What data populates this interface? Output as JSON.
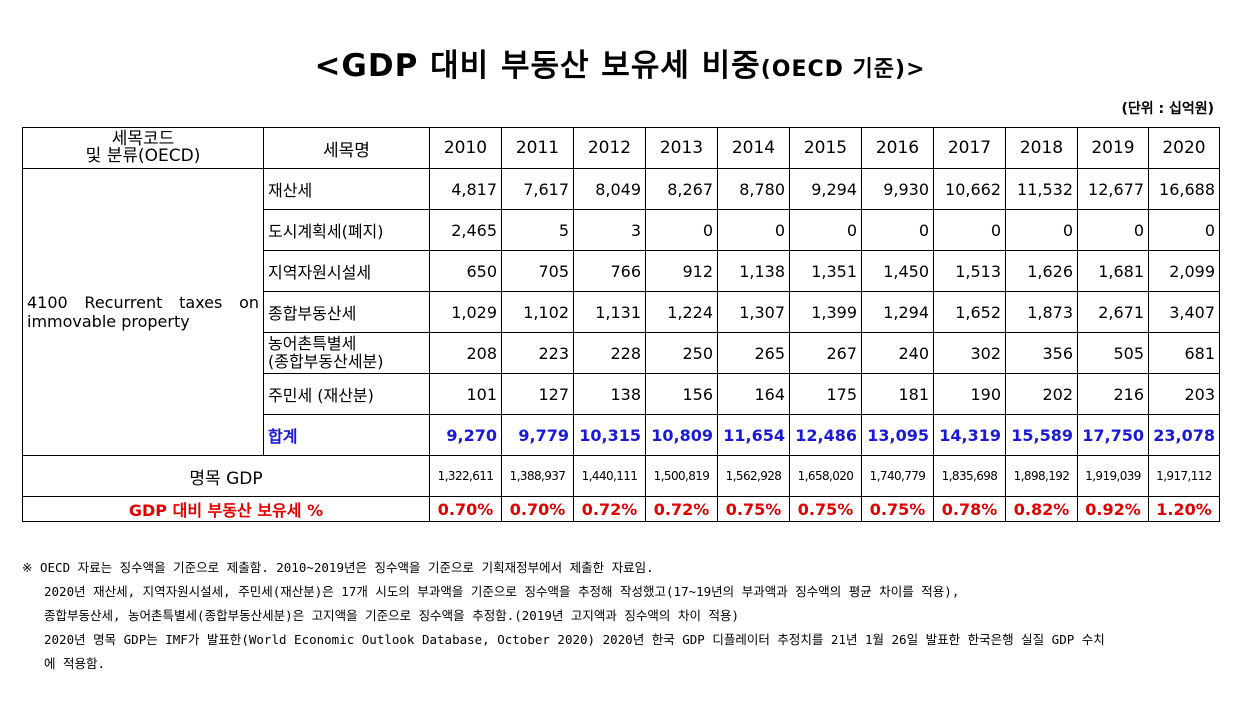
{
  "title_main": "<GDP 대비 부동산 보유세 비중",
  "title_sub": "(OECD 기준)>",
  "unit": "(단위 : 십억원)",
  "header": {
    "code_line1": "세목코드",
    "code_line2": "및 분류(OECD)",
    "name": "세목명",
    "years": [
      "2010",
      "2011",
      "2012",
      "2013",
      "2014",
      "2015",
      "2016",
      "2017",
      "2018",
      "2019",
      "2020"
    ]
  },
  "category": "4100 Recurrent taxes on immovable property",
  "rows": [
    {
      "name": "재산세",
      "values": [
        "4,817",
        "7,617",
        "8,049",
        "8,267",
        "8,780",
        "9,294",
        "9,930",
        "10,662",
        "11,532",
        "12,677",
        "16,688"
      ]
    },
    {
      "name": "도시계획세(폐지)",
      "values": [
        "2,465",
        "5",
        "3",
        "0",
        "0",
        "0",
        "0",
        "0",
        "0",
        "0",
        "0"
      ]
    },
    {
      "name": "지역자원시설세",
      "values": [
        "650",
        "705",
        "766",
        "912",
        "1,138",
        "1,351",
        "1,450",
        "1,513",
        "1,626",
        "1,681",
        "2,099"
      ]
    },
    {
      "name": "종합부동산세",
      "values": [
        "1,029",
        "1,102",
        "1,131",
        "1,224",
        "1,307",
        "1,399",
        "1,294",
        "1,652",
        "1,873",
        "2,671",
        "3,407"
      ]
    },
    {
      "name_line1": "농어촌특별세",
      "name_line2": "(종합부동산세분)",
      "values": [
        "208",
        "223",
        "228",
        "250",
        "265",
        "267",
        "240",
        "302",
        "356",
        "505",
        "681"
      ]
    },
    {
      "name": "주민세 (재산분)",
      "values": [
        "101",
        "127",
        "138",
        "156",
        "164",
        "175",
        "181",
        "190",
        "202",
        "216",
        "203"
      ]
    }
  ],
  "total": {
    "name": "합계",
    "values": [
      "9,270",
      "9,779",
      "10,315",
      "10,809",
      "11,654",
      "12,486",
      "13,095",
      "14,319",
      "15,589",
      "17,750",
      "23,078"
    ]
  },
  "gdp": {
    "label": "명목 GDP",
    "values": [
      "1,322,611",
      "1,388,937",
      "1,440,111",
      "1,500,819",
      "1,562,928",
      "1,658,020",
      "1,740,779",
      "1,835,698",
      "1,898,192",
      "1,919,039",
      "1,917,112"
    ]
  },
  "ratio": {
    "label": "GDP 대비 부동산 보유세 %",
    "values": [
      "0.70%",
      "0.70%",
      "0.72%",
      "0.72%",
      "0.75%",
      "0.75%",
      "0.75%",
      "0.78%",
      "0.82%",
      "0.92%",
      "1.20%"
    ]
  },
  "notes": [
    "※ OECD 자료는 징수액을 기준으로 제출함. 2010~2019년은 징수액을 기준으로 기획재정부에서 제출한 자료임.",
    "2020년 재산세, 지역자원시설세, 주민세(재산분)은 17개 시도의 부과액을 기준으로 징수액을 추정해 작성했고(17~19년의 부과액과 징수액의 평균 차이를 적용),",
    "종합부동산세, 농어촌특별세(종합부동산세분)은 고지액을 기준으로 징수액을 추정함.(2019년 고지액과 징수액의 차이 적용)",
    "2020년 명목 GDP는 IMF가 발표한(World Economic Outlook Database, October 2020) 2020년 한국 GDP 디플레이터 추정치를 21년 1월 26일 발표한 한국은행 실질 GDP 수치",
    "에 적용함."
  ]
}
